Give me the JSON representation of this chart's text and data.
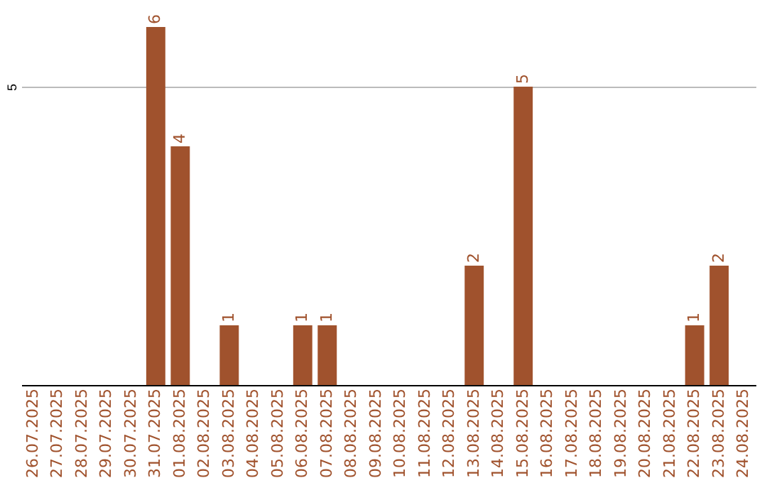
{
  "chart_data": {
    "type": "bar",
    "categories": [
      "26.07.2025",
      "27.07.2025",
      "28.07.2025",
      "29.07.2025",
      "30.07.2025",
      "31.07.2025",
      "01.08.2025",
      "02.08.2025",
      "03.08.2025",
      "04.08.2025",
      "05.08.2025",
      "06.08.2025",
      "07.08.2025",
      "08.08.2025",
      "09.08.2025",
      "10.08.2025",
      "11.08.2025",
      "12.08.2025",
      "13.08.2025",
      "14.08.2025",
      "15.08.2025",
      "16.08.2025",
      "17.08.2025",
      "18.08.2025",
      "19.08.2025",
      "20.08.2025",
      "21.08.2025",
      "22.08.2025",
      "23.08.2025",
      "24.08.2025"
    ],
    "values": [
      0,
      0,
      0,
      0,
      0,
      6,
      4,
      0,
      1,
      0,
      0,
      1,
      1,
      0,
      0,
      0,
      0,
      0,
      2,
      0,
      5,
      0,
      0,
      0,
      0,
      0,
      0,
      1,
      2,
      0
    ],
    "value_labels": [
      null,
      null,
      null,
      null,
      null,
      "6",
      "4",
      null,
      "1",
      null,
      null,
      "1",
      "1",
      null,
      null,
      null,
      null,
      null,
      "2",
      null,
      "5",
      null,
      null,
      null,
      null,
      null,
      null,
      "1",
      "2",
      null
    ],
    "color": "#a0522d",
    "ylim": [
      0,
      6
    ],
    "yticks": [
      5
    ],
    "grid": "y"
  }
}
